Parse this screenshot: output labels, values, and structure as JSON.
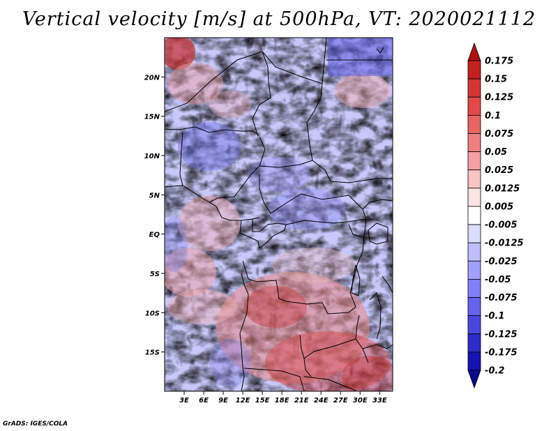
{
  "title": "Vertical velocity [m/s] at 500hPa, VT: 2020021112",
  "credit": "GrADS: IGES/COLA",
  "map": {
    "lon_range": [
      0,
      35
    ],
    "lat_range": [
      -20,
      25
    ],
    "lat_ticks": [
      "20N",
      "15N",
      "10N",
      "5N",
      "EQ",
      "5S",
      "10S",
      "15S"
    ],
    "lon_ticks": [
      "3E",
      "6E",
      "9E",
      "12E",
      "15E",
      "18E",
      "21E",
      "24E",
      "27E",
      "30E",
      "33E"
    ],
    "field_description_colors": {
      "rising": "#5a5aff",
      "sinking": "#e06050",
      "neutral": "#ffffff"
    }
  },
  "colorbar": {
    "levels": [
      "0.175",
      "0.15",
      "0.125",
      "0.1",
      "0.075",
      "0.05",
      "0.025",
      "0.0125",
      "0.005",
      "-0.005",
      "-0.0125",
      "-0.025",
      "-0.05",
      "-0.075",
      "-0.1",
      "-0.125",
      "-0.175",
      "-0.2"
    ],
    "colors": [
      "#b01010",
      "#c42020",
      "#d63434",
      "#e24a4a",
      "#ea6464",
      "#f08080",
      "#f5a0a0",
      "#f9c4c4",
      "#fde4e4",
      "#ffffff",
      "#dcdcff",
      "#bebeff",
      "#a0a0ff",
      "#8080ff",
      "#6464f0",
      "#4848e0",
      "#2c2cc8",
      "#1414b0",
      "#0a0a90"
    ]
  }
}
